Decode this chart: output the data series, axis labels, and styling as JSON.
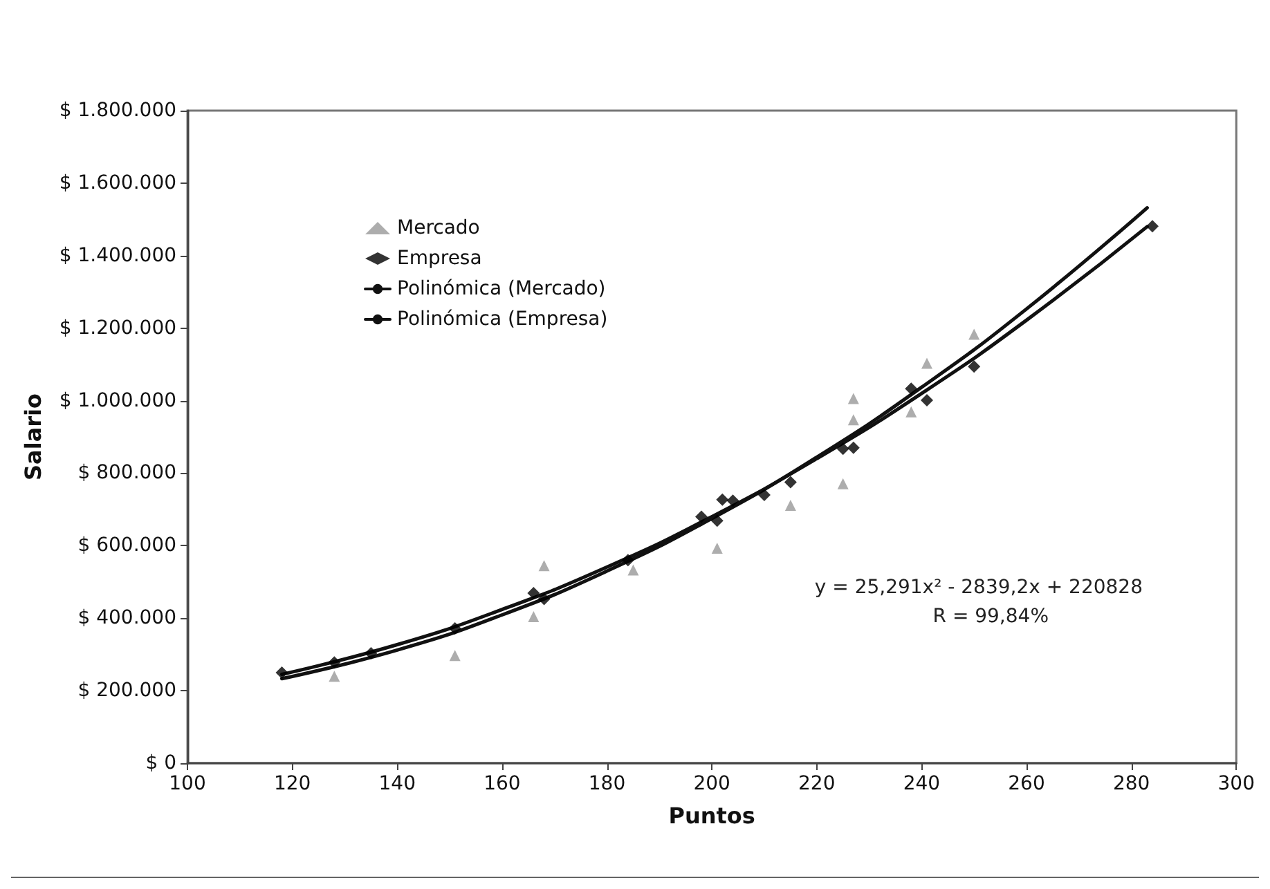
{
  "chart_data": {
    "type": "scatter",
    "xlabel": "Puntos",
    "ylabel": "Salario",
    "xlim": [
      100,
      300
    ],
    "xticks": [
      100,
      120,
      140,
      160,
      180,
      200,
      220,
      240,
      260,
      280,
      300
    ],
    "ylim": [
      0,
      1800000
    ],
    "yticks": [
      {
        "value": 0,
        "label": "$ 0"
      },
      {
        "value": 200000,
        "label": "$ 200.000"
      },
      {
        "value": 400000,
        "label": "$ 400.000"
      },
      {
        "value": 600000,
        "label": "$ 600.000"
      },
      {
        "value": 800000,
        "label": "$ 800.000"
      },
      {
        "value": 1000000,
        "label": "$ 1.000.000"
      },
      {
        "value": 1200000,
        "label": "$ 1.200.000"
      },
      {
        "value": 1400000,
        "label": "$ 1.400.000"
      },
      {
        "value": 1600000,
        "label": "$ 1.600.000"
      },
      {
        "value": 1800000,
        "label": "$ 1.800.000"
      }
    ],
    "grid": false,
    "legend": "top left",
    "series": [
      {
        "name": "Mercado",
        "marker": "triangle",
        "color": "#999999",
        "x": [
          128,
          151,
          166,
          168,
          185,
          201,
          215,
          225,
          227,
          227,
          238,
          241,
          250
        ],
        "values": [
          240000,
          297000,
          404000,
          545000,
          533000,
          593000,
          711000,
          771000,
          947000,
          1006000,
          969000,
          1103000,
          1183000
        ]
      },
      {
        "name": "Empresa",
        "marker": "diamond",
        "color": "#000000",
        "x": [
          118,
          128,
          135,
          151,
          166,
          168,
          184,
          198,
          201,
          202,
          204,
          210,
          215,
          225,
          227,
          238,
          241,
          250,
          284
        ],
        "values": [
          250000,
          278000,
          303000,
          372000,
          469000,
          453000,
          560000,
          680000,
          669000,
          727000,
          724000,
          740000,
          775000,
          867000,
          870000,
          1033000,
          1001000,
          1094000,
          1481000
        ]
      },
      {
        "name": "Polinómica (Mercado)",
        "type": "line",
        "marker": "none",
        "line_style": "solid",
        "color": "#111111",
        "x": [
          118,
          140,
          160,
          180,
          200,
          220,
          240,
          260,
          283
        ],
        "values": [
          233000,
          312000,
          409000,
          530000,
          675000,
          844000,
          1037000,
          1253000,
          1532000
        ]
      },
      {
        "name": "Polinómica (Empresa)",
        "type": "line",
        "marker": "none",
        "line_style": "solid",
        "color": "#111111",
        "x": [
          118,
          140,
          160,
          180,
          200,
          220,
          240,
          260,
          283
        ],
        "values": [
          245000,
          327000,
          424000,
          541000,
          680000,
          840000,
          1020000,
          1222000,
          1480000
        ]
      }
    ],
    "annotations": [
      "y = 25,291x² - 2839,2x + 220828",
      "R = 99,84%"
    ]
  }
}
